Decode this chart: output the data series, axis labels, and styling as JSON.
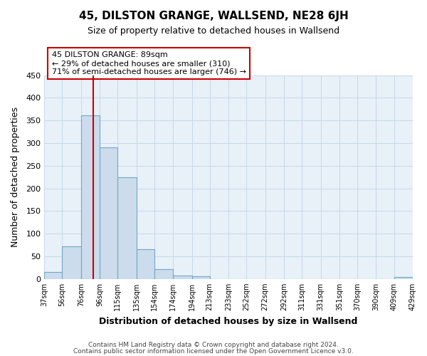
{
  "title": "45, DILSTON GRANGE, WALLSEND, NE28 6JH",
  "subtitle": "Size of property relative to detached houses in Wallsend",
  "xlabel": "Distribution of detached houses by size in Wallsend",
  "ylabel": "Number of detached properties",
  "bin_edges": [
    37,
    56,
    76,
    96,
    115,
    135,
    154,
    174,
    194,
    213,
    233,
    252,
    272,
    292,
    311,
    331,
    351,
    370,
    390,
    409,
    429
  ],
  "bar_heights": [
    15,
    72,
    362,
    290,
    224,
    65,
    22,
    7,
    6,
    0,
    0,
    0,
    0,
    0,
    0,
    0,
    0,
    0,
    0,
    5
  ],
  "bar_color": "#ccdcec",
  "bar_edge_color": "#6fa8c8",
  "vline_x": 89,
  "vline_color": "#cc0000",
  "annotation_title": "45 DILSTON GRANGE: 89sqm",
  "annotation_line1": "← 29% of detached houses are smaller (310)",
  "annotation_line2": "71% of semi-detached houses are larger (746) →",
  "annotation_box_color": "white",
  "annotation_box_edge": "#cc0000",
  "ylim": [
    0,
    450
  ],
  "xlim": [
    37,
    429
  ],
  "tick_labels": [
    "37sqm",
    "56sqm",
    "76sqm",
    "96sqm",
    "115sqm",
    "135sqm",
    "154sqm",
    "174sqm",
    "194sqm",
    "213sqm",
    "233sqm",
    "252sqm",
    "272sqm",
    "292sqm",
    "311sqm",
    "331sqm",
    "351sqm",
    "370sqm",
    "390sqm",
    "409sqm",
    "429sqm"
  ],
  "footer1": "Contains HM Land Registry data © Crown copyright and database right 2024.",
  "footer2": "Contains public sector information licensed under the Open Government Licence v3.0.",
  "grid_color": "#c8d8e8",
  "background_color": "#ffffff",
  "plot_bg_color": "#e8f0f8"
}
